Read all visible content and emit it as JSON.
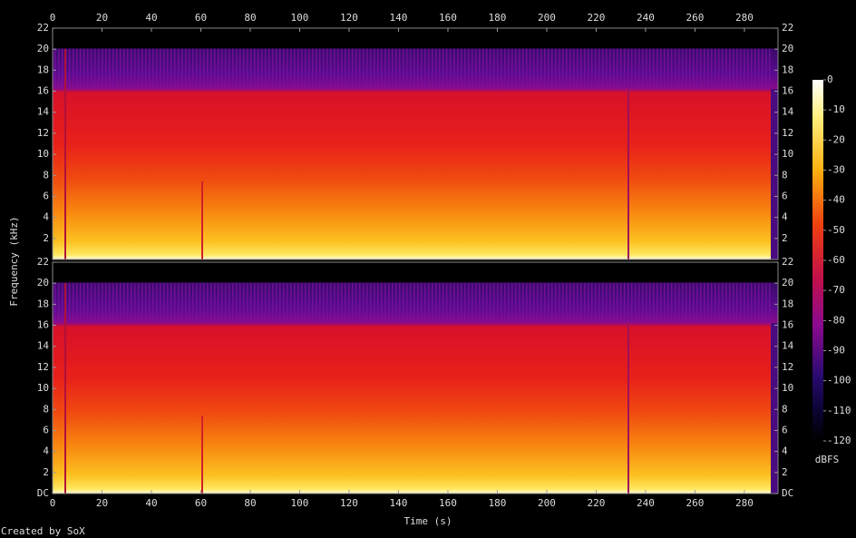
{
  "chart_data": {
    "type": "spectrogram",
    "xlabel": "Time (s)",
    "ylabel": "Frequency (kHz)",
    "xlim": [
      0,
      293.6
    ],
    "xticks": [
      0,
      20,
      40,
      60,
      80,
      100,
      120,
      140,
      160,
      180,
      200,
      220,
      240,
      260,
      280
    ],
    "channels": [
      {
        "ylim": [
          0,
          22
        ],
        "yticks": [
          2,
          4,
          6,
          8,
          10,
          12,
          14,
          16,
          18,
          20,
          22
        ]
      },
      {
        "ylim": [
          0,
          22
        ],
        "yticks": [
          {
            "value": 0,
            "label": "DC"
          },
          2,
          4,
          6,
          8,
          10,
          12,
          14,
          16,
          18,
          20,
          22
        ]
      }
    ],
    "colorbar": {
      "label": "dBFS",
      "clim": [
        -120,
        0
      ],
      "ticks": [
        0,
        -10,
        -20,
        -30,
        -40,
        -50,
        -60,
        -70,
        -80,
        -90,
        -100,
        -110,
        -120
      ]
    }
  },
  "footer": "Created by SoX"
}
